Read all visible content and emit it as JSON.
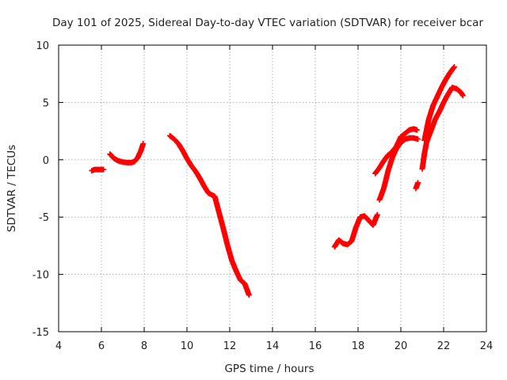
{
  "chart_data": {
    "type": "scatter",
    "title": "Day 101 of 2025, Sidereal Day-to-day VTEC variation (SDTVAR) for receiver bcar",
    "xlabel": "GPS time / hours",
    "ylabel": "SDTVAR / TECUs",
    "xlim": [
      4,
      24
    ],
    "ylim": [
      -15,
      10
    ],
    "xticks": [
      "4",
      "6",
      "8",
      "10",
      "12",
      "14",
      "16",
      "18",
      "20",
      "22",
      "24"
    ],
    "yticks": [
      "10",
      "5",
      "0",
      "-5",
      "-10",
      "-15"
    ],
    "xtick_values": [
      4,
      6,
      8,
      10,
      12,
      14,
      16,
      18,
      20,
      22,
      24
    ],
    "ytick_values": [
      10,
      5,
      0,
      -5,
      -10,
      -15
    ],
    "grid": true,
    "marker": "+",
    "color": "#ff0000",
    "series": [
      {
        "name": "segment-1",
        "points": [
          [
            5.55,
            -0.95
          ],
          [
            5.7,
            -0.85
          ],
          [
            5.85,
            -0.85
          ],
          [
            6.0,
            -0.85
          ],
          [
            6.1,
            -0.85
          ]
        ]
      },
      {
        "name": "segment-2",
        "points": [
          [
            6.4,
            0.5
          ],
          [
            6.6,
            0.1
          ],
          [
            6.8,
            -0.1
          ],
          [
            7.0,
            -0.2
          ],
          [
            7.2,
            -0.25
          ],
          [
            7.4,
            -0.25
          ],
          [
            7.55,
            -0.15
          ],
          [
            7.7,
            0.2
          ],
          [
            7.85,
            0.8
          ],
          [
            7.95,
            1.4
          ]
        ]
      },
      {
        "name": "segment-3",
        "points": [
          [
            9.2,
            2.1
          ],
          [
            9.4,
            1.8
          ],
          [
            9.6,
            1.4
          ],
          [
            9.8,
            0.8
          ],
          [
            10.0,
            0.1
          ],
          [
            10.2,
            -0.5
          ],
          [
            10.4,
            -1.0
          ],
          [
            10.6,
            -1.6
          ],
          [
            10.8,
            -2.3
          ],
          [
            11.0,
            -2.9
          ],
          [
            11.3,
            -3.2
          ],
          [
            11.5,
            -4.6
          ],
          [
            11.7,
            -6.0
          ],
          [
            11.9,
            -7.5
          ],
          [
            12.1,
            -8.8
          ],
          [
            12.3,
            -9.7
          ],
          [
            12.5,
            -10.5
          ],
          [
            12.7,
            -10.8
          ],
          [
            12.9,
            -11.8
          ]
        ]
      },
      {
        "name": "segment-4",
        "points": [
          [
            16.9,
            -7.6
          ],
          [
            17.1,
            -7.0
          ],
          [
            17.3,
            -7.3
          ],
          [
            17.5,
            -7.4
          ],
          [
            17.7,
            -7.1
          ],
          [
            17.9,
            -5.9
          ],
          [
            18.1,
            -5.0
          ],
          [
            18.3,
            -4.9
          ],
          [
            18.5,
            -5.3
          ],
          [
            18.7,
            -5.7
          ],
          [
            18.9,
            -4.8
          ]
        ]
      },
      {
        "name": "segment-5",
        "points": [
          [
            18.8,
            -1.2
          ],
          [
            19.0,
            -0.7
          ],
          [
            19.2,
            -0.1
          ],
          [
            19.4,
            0.4
          ],
          [
            19.6,
            0.7
          ],
          [
            19.8,
            1.2
          ],
          [
            20.0,
            2.0
          ],
          [
            20.2,
            2.3
          ],
          [
            20.4,
            2.6
          ],
          [
            20.6,
            2.7
          ],
          [
            20.75,
            2.6
          ]
        ]
      },
      {
        "name": "segment-6",
        "points": [
          [
            19.0,
            -3.5
          ],
          [
            19.2,
            -2.5
          ],
          [
            19.4,
            -1.0
          ],
          [
            19.6,
            0.2
          ],
          [
            19.8,
            1.0
          ],
          [
            20.0,
            1.5
          ],
          [
            20.2,
            1.8
          ],
          [
            20.4,
            1.9
          ],
          [
            20.6,
            1.9
          ],
          [
            20.8,
            1.8
          ]
        ]
      },
      {
        "name": "segment-7",
        "points": [
          [
            20.7,
            -2.5
          ],
          [
            20.8,
            -2.0
          ]
        ]
      },
      {
        "name": "segment-8",
        "points": [
          [
            21.0,
            -0.8
          ],
          [
            21.1,
            0.5
          ],
          [
            21.2,
            1.5
          ],
          [
            21.4,
            2.5
          ],
          [
            21.6,
            3.5
          ],
          [
            21.8,
            4.2
          ],
          [
            22.0,
            5.0
          ],
          [
            22.2,
            5.7
          ],
          [
            22.4,
            6.3
          ],
          [
            22.6,
            6.2
          ],
          [
            22.8,
            5.9
          ],
          [
            22.9,
            5.6
          ]
        ]
      },
      {
        "name": "segment-9",
        "points": [
          [
            21.1,
            1.7
          ],
          [
            21.3,
            3.5
          ],
          [
            21.5,
            4.7
          ],
          [
            21.7,
            5.5
          ],
          [
            21.9,
            6.3
          ],
          [
            22.1,
            7.0
          ],
          [
            22.3,
            7.6
          ],
          [
            22.5,
            8.1
          ]
        ]
      }
    ]
  }
}
